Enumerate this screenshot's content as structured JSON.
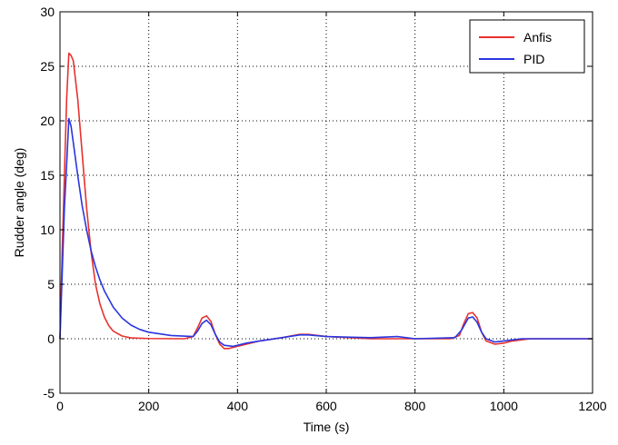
{
  "chart_data": {
    "type": "line",
    "xlabel": "Time (s)",
    "ylabel": "Rudder angle (deg)",
    "xlim": [
      0,
      1200
    ],
    "ylim": [
      -5,
      30
    ],
    "x_ticks": [
      0,
      200,
      400,
      600,
      800,
      1000,
      1200
    ],
    "y_ticks": [
      -5,
      0,
      5,
      10,
      15,
      20,
      25,
      30
    ],
    "grid": true,
    "legend_position": "top-right",
    "series": [
      {
        "name": "Anfis",
        "color": "#e8322f",
        "points": [
          [
            0,
            0
          ],
          [
            5,
            8
          ],
          [
            10,
            15
          ],
          [
            15,
            22
          ],
          [
            20,
            26.2
          ],
          [
            25,
            26
          ],
          [
            30,
            25.5
          ],
          [
            40,
            22
          ],
          [
            50,
            17
          ],
          [
            60,
            12
          ],
          [
            70,
            8
          ],
          [
            80,
            5
          ],
          [
            90,
            3.2
          ],
          [
            100,
            2
          ],
          [
            110,
            1.2
          ],
          [
            120,
            0.7
          ],
          [
            140,
            0.25
          ],
          [
            160,
            0.08
          ],
          [
            200,
            0.02
          ],
          [
            280,
            0.0
          ],
          [
            300,
            0.2
          ],
          [
            310,
            1.0
          ],
          [
            320,
            1.9
          ],
          [
            330,
            2.1
          ],
          [
            340,
            1.6
          ],
          [
            350,
            0.4
          ],
          [
            360,
            -0.5
          ],
          [
            370,
            -0.9
          ],
          [
            380,
            -0.9
          ],
          [
            400,
            -0.7
          ],
          [
            450,
            -0.2
          ],
          [
            500,
            0.1
          ],
          [
            540,
            0.4
          ],
          [
            560,
            0.4
          ],
          [
            600,
            0.2
          ],
          [
            700,
            0.0
          ],
          [
            800,
            0.0
          ],
          [
            880,
            0.0
          ],
          [
            900,
            0.3
          ],
          [
            910,
            1.4
          ],
          [
            920,
            2.3
          ],
          [
            930,
            2.4
          ],
          [
            940,
            1.9
          ],
          [
            950,
            0.6
          ],
          [
            960,
            -0.2
          ],
          [
            980,
            -0.5
          ],
          [
            1000,
            -0.4
          ],
          [
            1020,
            -0.2
          ],
          [
            1060,
            0.0
          ],
          [
            1200,
            0.0
          ]
        ]
      },
      {
        "name": "PID",
        "color": "#2a36e0",
        "points": [
          [
            0,
            0
          ],
          [
            5,
            6
          ],
          [
            10,
            12
          ],
          [
            15,
            16
          ],
          [
            20,
            20.2
          ],
          [
            25,
            19.5
          ],
          [
            30,
            18
          ],
          [
            40,
            15
          ],
          [
            50,
            12.2
          ],
          [
            60,
            10
          ],
          [
            70,
            8.1
          ],
          [
            80,
            6.6
          ],
          [
            90,
            5.4
          ],
          [
            100,
            4.4
          ],
          [
            120,
            2.9
          ],
          [
            140,
            1.9
          ],
          [
            160,
            1.25
          ],
          [
            180,
            0.85
          ],
          [
            200,
            0.6
          ],
          [
            250,
            0.3
          ],
          [
            300,
            0.2
          ],
          [
            310,
            0.7
          ],
          [
            320,
            1.4
          ],
          [
            330,
            1.7
          ],
          [
            340,
            1.3
          ],
          [
            350,
            0.4
          ],
          [
            360,
            -0.3
          ],
          [
            370,
            -0.6
          ],
          [
            390,
            -0.7
          ],
          [
            420,
            -0.4
          ],
          [
            450,
            -0.2
          ],
          [
            500,
            0.1
          ],
          [
            540,
            0.35
          ],
          [
            560,
            0.35
          ],
          [
            600,
            0.2
          ],
          [
            700,
            0.1
          ],
          [
            760,
            0.2
          ],
          [
            800,
            0.0
          ],
          [
            890,
            0.1
          ],
          [
            905,
            0.8
          ],
          [
            920,
            1.9
          ],
          [
            930,
            2.0
          ],
          [
            940,
            1.5
          ],
          [
            950,
            0.6
          ],
          [
            960,
            0.0
          ],
          [
            980,
            -0.3
          ],
          [
            1000,
            -0.2
          ],
          [
            1040,
            0.0
          ],
          [
            1200,
            0.0
          ]
        ]
      }
    ]
  }
}
